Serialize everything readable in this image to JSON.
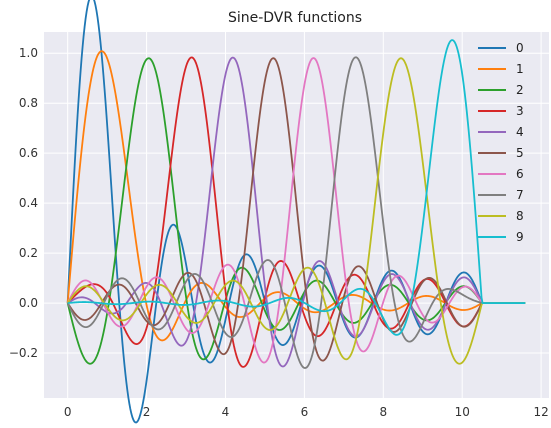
{
  "chart_data": {
    "type": "line",
    "title": "Sine-DVR functions",
    "xlabel": "",
    "ylabel": "",
    "xlim": [
      -0.6,
      12.2
    ],
    "ylim": [
      -0.38,
      1.085
    ],
    "xticks": [
      0,
      2,
      4,
      6,
      8,
      10,
      12
    ],
    "yticks": [
      -0.2,
      0.0,
      0.2,
      0.4,
      0.6,
      0.8,
      1.0
    ],
    "xtick_labels": [
      "0",
      "2",
      "4",
      "6",
      "8",
      "10",
      "12"
    ],
    "ytick_labels": [
      "−0.2",
      "0.0",
      "0.2",
      "0.4",
      "0.6",
      "0.8",
      "1.0"
    ],
    "grid": true,
    "legend_position": "top-right",
    "background_color": "#eaeaf2",
    "domain": [
      0,
      11.6
    ],
    "support_end": 10.5,
    "series": [
      {
        "name": "0",
        "color": "#1f77b4",
        "center": 0.0,
        "peak": 0.98
      },
      {
        "name": "1",
        "color": "#ff7f0e",
        "center": 1.0,
        "peak": 0.98
      },
      {
        "name": "2",
        "color": "#2ca02c",
        "center": 2.05,
        "peak": 0.98
      },
      {
        "name": "3",
        "color": "#d62728",
        "center": 3.1,
        "peak": 0.98
      },
      {
        "name": "4",
        "color": "#9467bd",
        "center": 4.15,
        "peak": 0.98
      },
      {
        "name": "5",
        "color": "#8c564b",
        "center": 5.2,
        "peak": 0.98
      },
      {
        "name": "6",
        "color": "#e377c2",
        "center": 6.25,
        "peak": 0.98
      },
      {
        "name": "7",
        "color": "#7f7f7f",
        "center": 7.35,
        "peak": 0.98
      },
      {
        "name": "8",
        "color": "#bcbd22",
        "center": 8.45,
        "peak": 0.98
      },
      {
        "name": "9",
        "color": "#17becf",
        "center": 9.6,
        "peak": 1.01
      }
    ]
  }
}
